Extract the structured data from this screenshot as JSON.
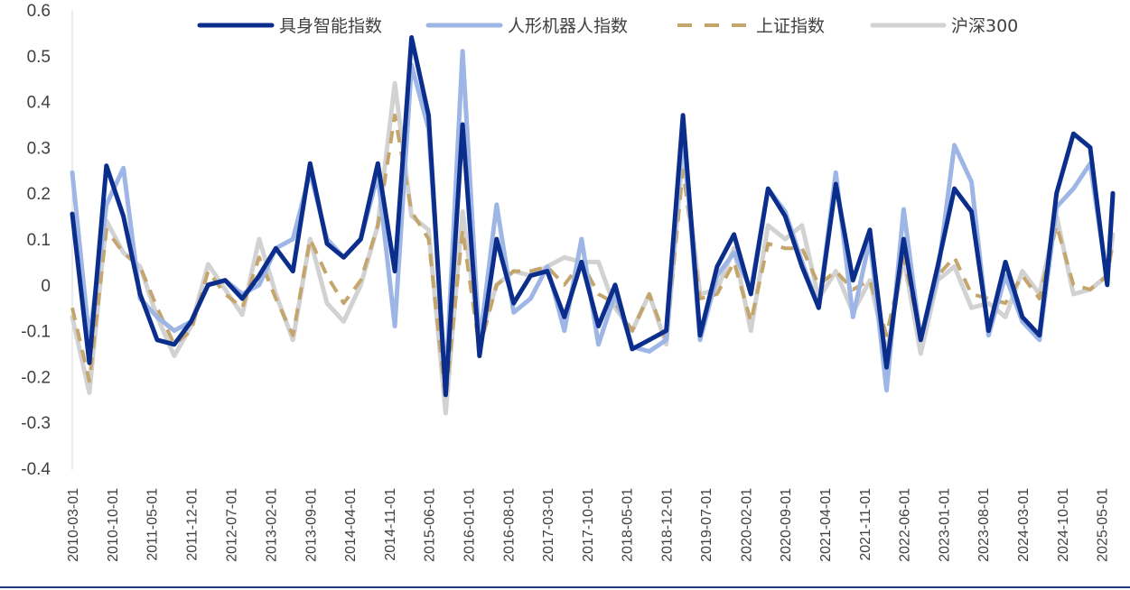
{
  "chart_data": {
    "type": "line",
    "title": "",
    "xlabel": "",
    "ylabel": "",
    "ylim": [
      -0.4,
      0.6
    ],
    "y_ticks": [
      "0.6",
      "0.5",
      "0.4",
      "0.3",
      "0.2",
      "0.1",
      "0",
      "-0.1",
      "-0.2",
      "-0.3",
      "-0.4"
    ],
    "grid": false,
    "legend_position": "top",
    "x_tick_labels": [
      "2010-03-01",
      "2010-10-01",
      "2011-05-01",
      "2011-12-01",
      "2012-07-01",
      "2013-02-01",
      "2013-09-01",
      "2014-04-01",
      "2014-11-01",
      "2015-06-01",
      "2016-01-01",
      "2016-08-01",
      "2017-03-01",
      "2017-10-01",
      "2018-05-01",
      "2018-12-01",
      "2019-07-01",
      "2020-02-01",
      "2020-09-01",
      "2021-04-01",
      "2021-11-01",
      "2022-06-01",
      "2023-01-01",
      "2023-08-01",
      "2024-03-01",
      "2024-10-01",
      "2025-05-01"
    ],
    "x_range": [
      "2010-03-01",
      "2025-07-01"
    ],
    "series": [
      {
        "name": "具身智能指数",
        "color": "#0B2E8C",
        "dash": "solid",
        "points": [
          [
            "2010-03-01",
            0.155
          ],
          [
            "2010-06-01",
            -0.17
          ],
          [
            "2010-09-01",
            0.26
          ],
          [
            "2010-12-01",
            0.15
          ],
          [
            "2011-03-01",
            -0.02
          ],
          [
            "2011-06-01",
            -0.12
          ],
          [
            "2011-09-01",
            -0.13
          ],
          [
            "2011-12-01",
            -0.08
          ],
          [
            "2012-03-01",
            0.0
          ],
          [
            "2012-06-01",
            0.01
          ],
          [
            "2012-09-01",
            -0.03
          ],
          [
            "2012-12-01",
            0.02
          ],
          [
            "2013-03-01",
            0.08
          ],
          [
            "2013-06-01",
            0.03
          ],
          [
            "2013-09-01",
            0.265
          ],
          [
            "2013-12-01",
            0.09
          ],
          [
            "2014-03-01",
            0.06
          ],
          [
            "2014-06-01",
            0.1
          ],
          [
            "2014-09-01",
            0.265
          ],
          [
            "2014-12-01",
            0.03
          ],
          [
            "2015-03-01",
            0.54
          ],
          [
            "2015-06-01",
            0.37
          ],
          [
            "2015-09-01",
            -0.24
          ],
          [
            "2015-12-01",
            0.35
          ],
          [
            "2016-03-01",
            -0.155
          ],
          [
            "2016-06-01",
            0.1
          ],
          [
            "2016-09-01",
            -0.04
          ],
          [
            "2016-12-01",
            0.02
          ],
          [
            "2017-03-01",
            0.03
          ],
          [
            "2017-06-01",
            -0.07
          ],
          [
            "2017-09-01",
            0.05
          ],
          [
            "2017-12-01",
            -0.09
          ],
          [
            "2018-03-01",
            0.0
          ],
          [
            "2018-06-01",
            -0.14
          ],
          [
            "2018-09-01",
            -0.12
          ],
          [
            "2018-12-01",
            -0.1
          ],
          [
            "2019-03-01",
            0.37
          ],
          [
            "2019-06-01",
            -0.11
          ],
          [
            "2019-09-01",
            0.04
          ],
          [
            "2019-12-01",
            0.11
          ],
          [
            "2020-03-01",
            -0.02
          ],
          [
            "2020-06-01",
            0.21
          ],
          [
            "2020-09-01",
            0.15
          ],
          [
            "2020-12-01",
            0.04
          ],
          [
            "2021-03-01",
            -0.05
          ],
          [
            "2021-06-01",
            0.22
          ],
          [
            "2021-09-01",
            0.01
          ],
          [
            "2021-12-01",
            0.12
          ],
          [
            "2022-03-01",
            -0.18
          ],
          [
            "2022-06-01",
            0.1
          ],
          [
            "2022-09-01",
            -0.12
          ],
          [
            "2022-12-01",
            0.04
          ],
          [
            "2023-03-01",
            0.21
          ],
          [
            "2023-06-01",
            0.16
          ],
          [
            "2023-09-01",
            -0.1
          ],
          [
            "2023-12-01",
            0.05
          ],
          [
            "2024-03-01",
            -0.07
          ],
          [
            "2024-06-01",
            -0.11
          ],
          [
            "2024-09-01",
            0.2
          ],
          [
            "2024-12-01",
            0.33
          ],
          [
            "2025-03-01",
            0.3
          ],
          [
            "2025-06-01",
            0.0
          ],
          [
            "2025-07-01",
            0.2
          ]
        ]
      },
      {
        "name": "人形机器人指数",
        "color": "#9DB6E6",
        "dash": "solid",
        "points": [
          [
            "2010-03-01",
            0.245
          ],
          [
            "2010-06-01",
            -0.12
          ],
          [
            "2010-09-01",
            0.175
          ],
          [
            "2010-12-01",
            0.255
          ],
          [
            "2011-03-01",
            -0.03
          ],
          [
            "2011-06-01",
            -0.07
          ],
          [
            "2011-09-01",
            -0.1
          ],
          [
            "2011-12-01",
            -0.08
          ],
          [
            "2012-03-01",
            0.0
          ],
          [
            "2012-06-01",
            0.01
          ],
          [
            "2012-09-01",
            -0.02
          ],
          [
            "2012-12-01",
            0.0
          ],
          [
            "2013-03-01",
            0.08
          ],
          [
            "2013-06-01",
            0.1
          ],
          [
            "2013-09-01",
            0.245
          ],
          [
            "2013-12-01",
            0.1
          ],
          [
            "2014-03-01",
            0.06
          ],
          [
            "2014-06-01",
            0.1
          ],
          [
            "2014-09-01",
            0.24
          ],
          [
            "2014-12-01",
            -0.09
          ],
          [
            "2015-03-01",
            0.48
          ],
          [
            "2015-06-01",
            0.34
          ],
          [
            "2015-09-01",
            -0.22
          ],
          [
            "2015-12-01",
            0.51
          ],
          [
            "2016-03-01",
            -0.13
          ],
          [
            "2016-06-01",
            0.175
          ],
          [
            "2016-09-01",
            -0.06
          ],
          [
            "2016-12-01",
            -0.03
          ],
          [
            "2017-03-01",
            0.04
          ],
          [
            "2017-06-01",
            -0.1
          ],
          [
            "2017-09-01",
            0.1
          ],
          [
            "2017-12-01",
            -0.13
          ],
          [
            "2018-03-01",
            -0.02
          ],
          [
            "2018-06-01",
            -0.135
          ],
          [
            "2018-09-01",
            -0.145
          ],
          [
            "2018-12-01",
            -0.12
          ],
          [
            "2019-03-01",
            0.34
          ],
          [
            "2019-06-01",
            -0.12
          ],
          [
            "2019-09-01",
            0.02
          ],
          [
            "2019-12-01",
            0.07
          ],
          [
            "2020-03-01",
            -0.01
          ],
          [
            "2020-06-01",
            0.21
          ],
          [
            "2020-09-01",
            0.16
          ],
          [
            "2020-12-01",
            0.05
          ],
          [
            "2021-03-01",
            -0.05
          ],
          [
            "2021-06-01",
            0.245
          ],
          [
            "2021-09-01",
            -0.07
          ],
          [
            "2021-12-01",
            0.1
          ],
          [
            "2022-03-01",
            -0.23
          ],
          [
            "2022-06-01",
            0.165
          ],
          [
            "2022-09-01",
            -0.12
          ],
          [
            "2022-12-01",
            0.02
          ],
          [
            "2023-03-01",
            0.305
          ],
          [
            "2023-06-01",
            0.225
          ],
          [
            "2023-09-01",
            -0.11
          ],
          [
            "2023-12-01",
            0.02
          ],
          [
            "2024-03-01",
            -0.08
          ],
          [
            "2024-06-01",
            -0.12
          ],
          [
            "2024-09-01",
            0.17
          ],
          [
            "2024-12-01",
            0.21
          ],
          [
            "2025-03-01",
            0.265
          ],
          [
            "2025-06-01",
            0.01
          ],
          [
            "2025-07-01",
            0.19
          ]
        ]
      },
      {
        "name": "上证指数",
        "color": "#C4A56E",
        "dash": "dashed",
        "points": [
          [
            "2010-03-01",
            -0.05
          ],
          [
            "2010-06-01",
            -0.21
          ],
          [
            "2010-09-01",
            0.12
          ],
          [
            "2010-12-01",
            0.07
          ],
          [
            "2011-03-01",
            0.04
          ],
          [
            "2011-06-01",
            -0.05
          ],
          [
            "2011-09-01",
            -0.13
          ],
          [
            "2011-12-01",
            -0.1
          ],
          [
            "2012-03-01",
            0.03
          ],
          [
            "2012-06-01",
            -0.02
          ],
          [
            "2012-09-01",
            -0.05
          ],
          [
            "2012-12-01",
            0.06
          ],
          [
            "2013-03-01",
            -0.03
          ],
          [
            "2013-06-01",
            -0.11
          ],
          [
            "2013-09-01",
            0.1
          ],
          [
            "2013-12-01",
            0.02
          ],
          [
            "2014-03-01",
            -0.04
          ],
          [
            "2014-06-01",
            0.01
          ],
          [
            "2014-09-01",
            0.13
          ],
          [
            "2014-12-01",
            0.37
          ],
          [
            "2015-03-01",
            0.16
          ],
          [
            "2015-06-01",
            0.1
          ],
          [
            "2015-09-01",
            -0.25
          ],
          [
            "2015-12-01",
            0.12
          ],
          [
            "2016-03-01",
            -0.14
          ],
          [
            "2016-06-01",
            0.0
          ],
          [
            "2016-09-01",
            0.03
          ],
          [
            "2016-12-01",
            0.03
          ],
          [
            "2017-03-01",
            0.04
          ],
          [
            "2017-06-01",
            0.0
          ],
          [
            "2017-09-01",
            0.05
          ],
          [
            "2017-12-01",
            -0.02
          ],
          [
            "2018-03-01",
            -0.04
          ],
          [
            "2018-06-01",
            -0.1
          ],
          [
            "2018-09-01",
            -0.02
          ],
          [
            "2018-12-01",
            -0.12
          ],
          [
            "2019-03-01",
            0.25
          ],
          [
            "2019-06-01",
            -0.03
          ],
          [
            "2019-09-01",
            -0.02
          ],
          [
            "2019-12-01",
            0.05
          ],
          [
            "2020-03-01",
            -0.08
          ],
          [
            "2020-06-01",
            0.09
          ],
          [
            "2020-09-01",
            0.08
          ],
          [
            "2020-12-01",
            0.08
          ],
          [
            "2021-03-01",
            0.0
          ],
          [
            "2021-06-01",
            0.03
          ],
          [
            "2021-09-01",
            -0.01
          ],
          [
            "2021-12-01",
            0.01
          ],
          [
            "2022-03-01",
            -0.11
          ],
          [
            "2022-06-01",
            0.06
          ],
          [
            "2022-09-01",
            -0.11
          ],
          [
            "2022-12-01",
            0.02
          ],
          [
            "2023-03-01",
            0.06
          ],
          [
            "2023-06-01",
            -0.02
          ],
          [
            "2023-09-01",
            -0.03
          ],
          [
            "2023-12-01",
            -0.04
          ],
          [
            "2024-03-01",
            0.02
          ],
          [
            "2024-06-01",
            -0.03
          ],
          [
            "2024-09-01",
            0.13
          ],
          [
            "2024-12-01",
            0.0
          ],
          [
            "2025-03-01",
            -0.01
          ],
          [
            "2025-06-01",
            0.02
          ],
          [
            "2025-07-01",
            0.09
          ]
        ]
      },
      {
        "name": "沪深300",
        "color": "#D2D2D2",
        "dash": "solid",
        "points": [
          [
            "2010-03-01",
            -0.07
          ],
          [
            "2010-06-01",
            -0.235
          ],
          [
            "2010-09-01",
            0.14
          ],
          [
            "2010-12-01",
            0.07
          ],
          [
            "2011-03-01",
            0.04
          ],
          [
            "2011-06-01",
            -0.07
          ],
          [
            "2011-09-01",
            -0.155
          ],
          [
            "2011-12-01",
            -0.09
          ],
          [
            "2012-03-01",
            0.045
          ],
          [
            "2012-06-01",
            -0.01
          ],
          [
            "2012-09-01",
            -0.065
          ],
          [
            "2012-12-01",
            0.1
          ],
          [
            "2013-03-01",
            -0.02
          ],
          [
            "2013-06-01",
            -0.12
          ],
          [
            "2013-09-01",
            0.1
          ],
          [
            "2013-12-01",
            -0.04
          ],
          [
            "2014-03-01",
            -0.08
          ],
          [
            "2014-06-01",
            0.0
          ],
          [
            "2014-09-01",
            0.13
          ],
          [
            "2014-12-01",
            0.44
          ],
          [
            "2015-03-01",
            0.15
          ],
          [
            "2015-06-01",
            0.12
          ],
          [
            "2015-09-01",
            -0.28
          ],
          [
            "2015-12-01",
            0.16
          ],
          [
            "2016-03-01",
            -0.12
          ],
          [
            "2016-06-01",
            0.0
          ],
          [
            "2016-09-01",
            0.03
          ],
          [
            "2016-12-01",
            0.02
          ],
          [
            "2017-03-01",
            0.04
          ],
          [
            "2017-06-01",
            0.06
          ],
          [
            "2017-09-01",
            0.05
          ],
          [
            "2017-12-01",
            0.05
          ],
          [
            "2018-03-01",
            -0.05
          ],
          [
            "2018-06-01",
            -0.1
          ],
          [
            "2018-09-01",
            -0.02
          ],
          [
            "2018-12-01",
            -0.13
          ],
          [
            "2019-03-01",
            0.29
          ],
          [
            "2019-06-01",
            -0.02
          ],
          [
            "2019-09-01",
            -0.01
          ],
          [
            "2019-12-01",
            0.08
          ],
          [
            "2020-03-01",
            -0.1
          ],
          [
            "2020-06-01",
            0.13
          ],
          [
            "2020-09-01",
            0.1
          ],
          [
            "2020-12-01",
            0.13
          ],
          [
            "2021-03-01",
            -0.03
          ],
          [
            "2021-06-01",
            0.03
          ],
          [
            "2021-09-01",
            -0.06
          ],
          [
            "2021-12-01",
            0.01
          ],
          [
            "2022-03-01",
            -0.15
          ],
          [
            "2022-06-01",
            0.06
          ],
          [
            "2022-09-01",
            -0.15
          ],
          [
            "2022-12-01",
            0.01
          ],
          [
            "2023-03-01",
            0.04
          ],
          [
            "2023-06-01",
            -0.05
          ],
          [
            "2023-09-01",
            -0.04
          ],
          [
            "2023-12-01",
            -0.07
          ],
          [
            "2024-03-01",
            0.03
          ],
          [
            "2024-06-01",
            -0.02
          ],
          [
            "2024-09-01",
            0.15
          ],
          [
            "2024-12-01",
            -0.02
          ],
          [
            "2025-03-01",
            -0.01
          ],
          [
            "2025-06-01",
            0.02
          ],
          [
            "2025-07-01",
            0.11
          ]
        ]
      }
    ]
  }
}
